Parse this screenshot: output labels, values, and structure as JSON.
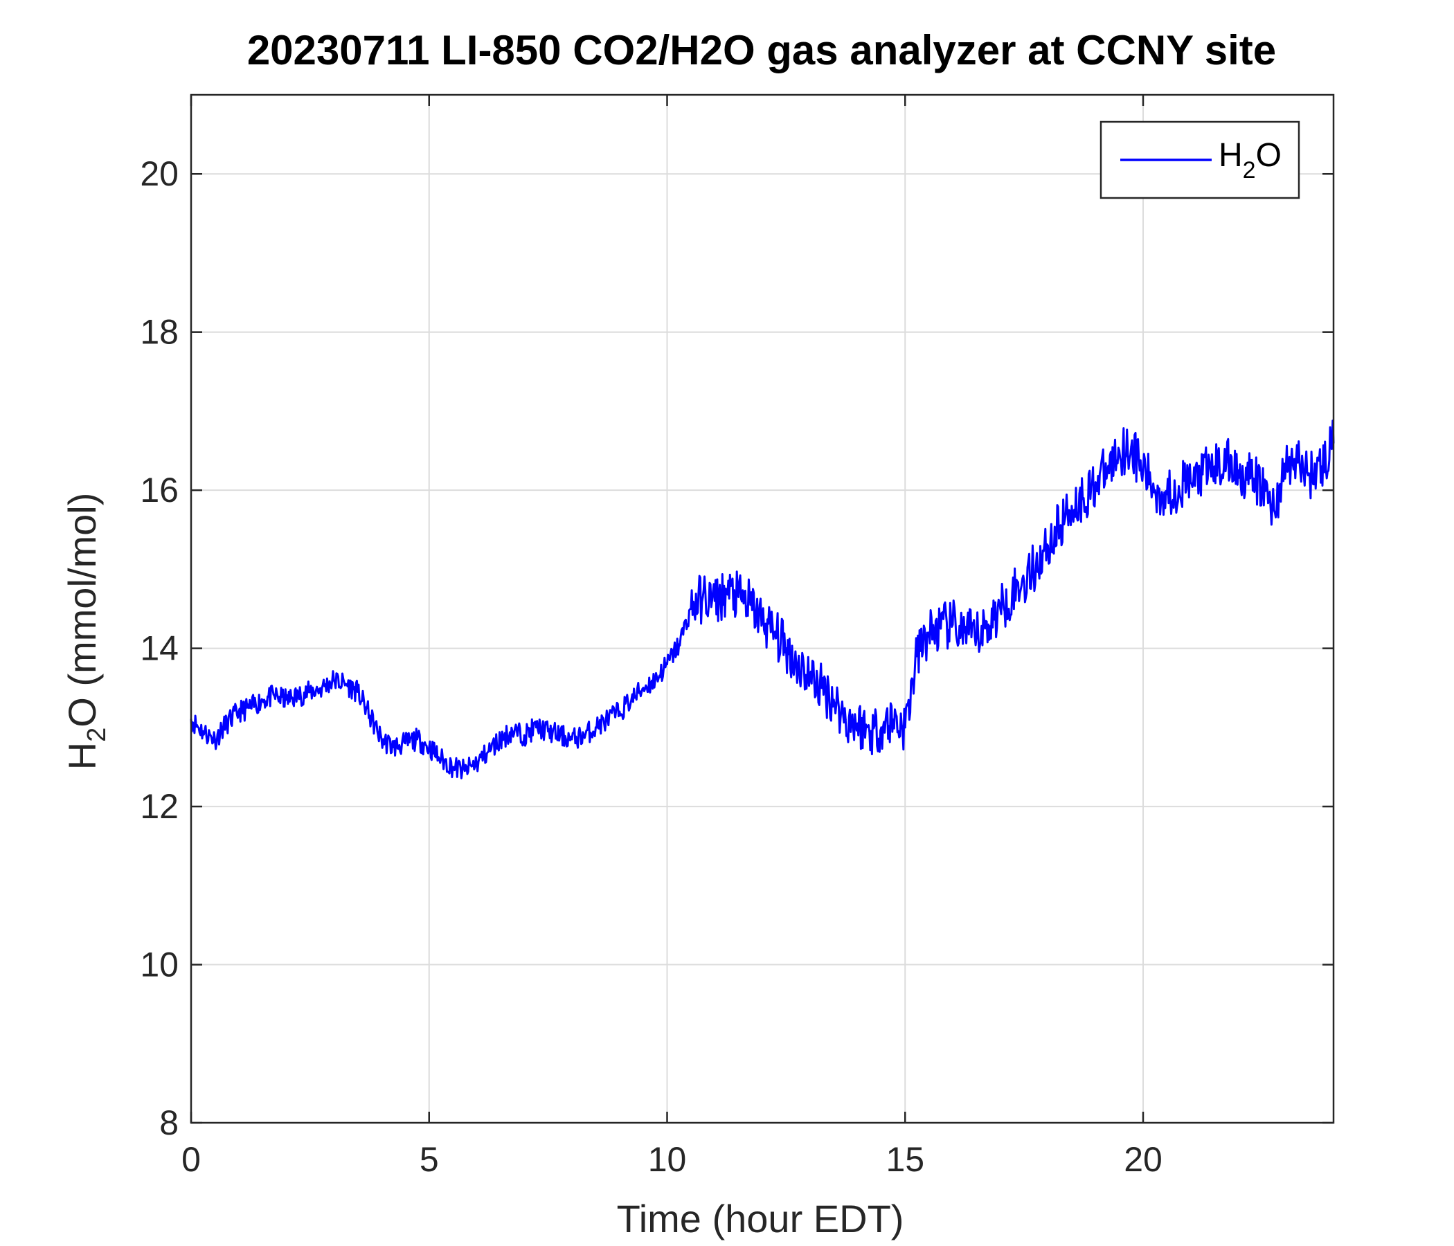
{
  "chart_data": {
    "type": "line",
    "title": "20230711 LI-850 CO2/H2O gas analyzer at CCNY site",
    "xlabel": "Time (hour EDT)",
    "ylabel": {
      "base": "H",
      "sub": "2",
      "rest": "O (mmol/mol)"
    },
    "xlim": [
      0,
      24
    ],
    "ylim": [
      8,
      21
    ],
    "xticks": [
      "0",
      "5",
      "10",
      "15",
      "20"
    ],
    "yticks": [
      "8",
      "10",
      "12",
      "14",
      "16",
      "18",
      "20"
    ],
    "grid": true,
    "legend_position": "top-right",
    "series": [
      {
        "name": {
          "base": "H",
          "sub": "2",
          "rest": "O"
        },
        "color": "#0000ff",
        "x": [
          0,
          0.25,
          0.5,
          0.75,
          1,
          1.25,
          1.5,
          1.75,
          2,
          2.25,
          2.5,
          2.75,
          3,
          3.25,
          3.5,
          3.75,
          4,
          4.25,
          4.5,
          4.75,
          5,
          5.25,
          5.5,
          5.75,
          6,
          6.25,
          6.5,
          6.75,
          7,
          7.25,
          7.5,
          7.75,
          8,
          8.25,
          8.5,
          8.75,
          9,
          9.25,
          9.5,
          9.75,
          10,
          10.25,
          10.5,
          10.75,
          11,
          11.25,
          11.5,
          11.75,
          12,
          12.25,
          12.5,
          12.75,
          13,
          13.25,
          13.5,
          13.75,
          14,
          14.25,
          14.5,
          14.75,
          15,
          15.25,
          15.5,
          15.75,
          16,
          16.25,
          16.5,
          16.75,
          17,
          17.25,
          17.5,
          17.75,
          18,
          18.25,
          18.5,
          18.75,
          19,
          19.25,
          19.5,
          19.75,
          20,
          20.25,
          20.5,
          20.75,
          21,
          21.25,
          21.5,
          21.75,
          22,
          22.25,
          22.5,
          22.75,
          23,
          23.25,
          23.5,
          23.75,
          24
        ],
        "y": [
          13.1,
          12.95,
          12.85,
          13.05,
          13.2,
          13.25,
          13.35,
          13.4,
          13.35,
          13.4,
          13.45,
          13.5,
          13.6,
          13.55,
          13.45,
          13.15,
          12.85,
          12.75,
          12.8,
          12.85,
          12.75,
          12.6,
          12.5,
          12.45,
          12.55,
          12.7,
          12.85,
          12.95,
          12.9,
          13.0,
          12.95,
          12.9,
          12.85,
          12.9,
          13.0,
          13.1,
          13.2,
          13.35,
          13.5,
          13.6,
          13.8,
          14.05,
          14.5,
          14.65,
          14.6,
          14.7,
          14.65,
          14.55,
          14.35,
          14.2,
          14.0,
          13.8,
          13.65,
          13.5,
          13.35,
          13.1,
          13.05,
          12.95,
          13.0,
          13.1,
          13.0,
          13.9,
          14.2,
          14.25,
          14.3,
          14.2,
          14.15,
          14.3,
          14.5,
          14.7,
          14.85,
          15.05,
          15.3,
          15.55,
          15.8,
          15.9,
          16.1,
          16.25,
          16.5,
          16.55,
          16.25,
          16.0,
          15.95,
          16.05,
          16.1,
          16.2,
          16.3,
          16.35,
          16.25,
          16.15,
          16.05,
          15.75,
          16.3,
          16.35,
          16.2,
          16.3,
          16.6
        ]
      }
    ]
  }
}
